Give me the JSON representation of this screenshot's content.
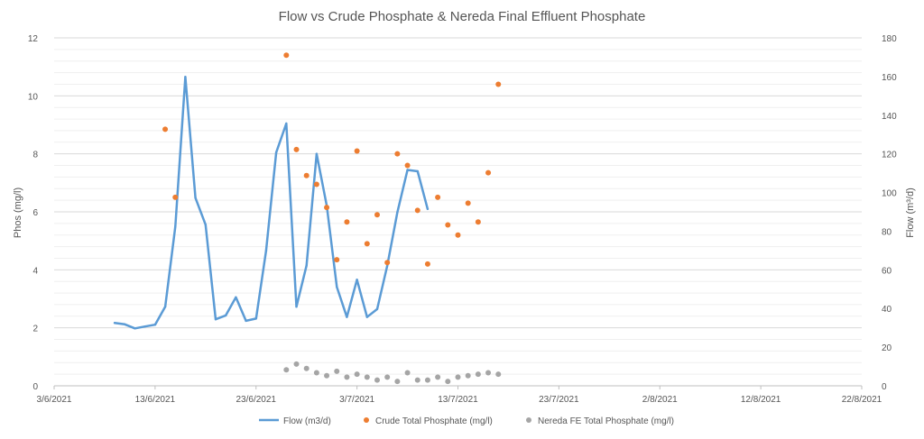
{
  "chart_data": {
    "type": "line+scatter",
    "title": "Flow vs Crude Phosphate & Nereda Final Effluent Phosphate",
    "ylabel_left": "Phos (mg/l)",
    "ylabel_right": "Flow (m³/d)",
    "xlabel": "",
    "x_ticks": [
      "3/6/2021",
      "13/6/2021",
      "23/6/2021",
      "3/7/2021",
      "13/7/2021",
      "23/7/2021",
      "2/8/2021",
      "12/8/2021",
      "22/8/2021"
    ],
    "xlim": [
      "2021-06-03",
      "2021-08-22"
    ],
    "ylim_left": [
      0,
      12
    ],
    "ylim_right": [
      0,
      180
    ],
    "y_ticks_left": [
      0,
      2,
      4,
      6,
      8,
      10,
      12
    ],
    "y_ticks_right": [
      0,
      20,
      40,
      60,
      80,
      100,
      120,
      140,
      160,
      180
    ],
    "grid": true,
    "legend_position": "bottom",
    "series": [
      {
        "name": "Flow (m3/d)",
        "kind": "line",
        "axis": "right",
        "color": "#5b9bd5",
        "points": [
          [
            "2021-06-09",
            32.5
          ],
          [
            "2021-06-10",
            31.8
          ],
          [
            "2021-06-11",
            29.7
          ],
          [
            "2021-06-12",
            30.7
          ],
          [
            "2021-06-13",
            31.6
          ],
          [
            "2021-06-14",
            40.9
          ],
          [
            "2021-06-15",
            82.4
          ],
          [
            "2021-06-16",
            159.8
          ],
          [
            "2021-06-17",
            97.2
          ],
          [
            "2021-06-18",
            83.4
          ],
          [
            "2021-06-19",
            34.4
          ],
          [
            "2021-06-20",
            36.4
          ],
          [
            "2021-06-21",
            45.8
          ],
          [
            "2021-06-22",
            33.6
          ],
          [
            "2021-06-23",
            34.8
          ],
          [
            "2021-06-24",
            69.9
          ],
          [
            "2021-06-25",
            120.7
          ],
          [
            "2021-06-26",
            135.7
          ],
          [
            "2021-06-27",
            40.9
          ],
          [
            "2021-06-28",
            62.2
          ],
          [
            "2021-06-29",
            120.0
          ],
          [
            "2021-06-30",
            93.2
          ],
          [
            "2021-07-01",
            51.1
          ],
          [
            "2021-07-02",
            35.6
          ],
          [
            "2021-07-03",
            54.9
          ],
          [
            "2021-07-04",
            35.6
          ],
          [
            "2021-07-05",
            39.7
          ],
          [
            "2021-07-06",
            62.2
          ],
          [
            "2021-07-07",
            89.8
          ],
          [
            "2021-07-08",
            111.7
          ],
          [
            "2021-07-09",
            111.0
          ],
          [
            "2021-07-10",
            91.5
          ]
        ]
      },
      {
        "name": "Crude Total Phosphate (mg/l)",
        "kind": "scatter",
        "axis": "left",
        "color": "#ed7d31",
        "points": [
          [
            "2021-06-14",
            8.85
          ],
          [
            "2021-06-15",
            6.5
          ],
          [
            "2021-06-26",
            11.4
          ],
          [
            "2021-06-27",
            8.15
          ],
          [
            "2021-06-28",
            7.25
          ],
          [
            "2021-06-29",
            6.95
          ],
          [
            "2021-06-30",
            6.15
          ],
          [
            "2021-07-01",
            4.35
          ],
          [
            "2021-07-02",
            5.65
          ],
          [
            "2021-07-03",
            8.1
          ],
          [
            "2021-07-04",
            4.9
          ],
          [
            "2021-07-05",
            5.9
          ],
          [
            "2021-07-06",
            4.25
          ],
          [
            "2021-07-07",
            8.0
          ],
          [
            "2021-07-08",
            7.6
          ],
          [
            "2021-07-09",
            6.05
          ],
          [
            "2021-07-10",
            4.2
          ],
          [
            "2021-07-11",
            6.5
          ],
          [
            "2021-07-12",
            5.55
          ],
          [
            "2021-07-13",
            5.2
          ],
          [
            "2021-07-14",
            6.3
          ],
          [
            "2021-07-15",
            5.65
          ],
          [
            "2021-07-16",
            7.35
          ],
          [
            "2021-07-17",
            10.4
          ]
        ]
      },
      {
        "name": "Nereda FE Total Phosphate (mg/l)",
        "kind": "scatter",
        "axis": "left",
        "color": "#a5a5a5",
        "points": [
          [
            "2021-06-26",
            0.55
          ],
          [
            "2021-06-27",
            0.75
          ],
          [
            "2021-06-28",
            0.6
          ],
          [
            "2021-06-29",
            0.45
          ],
          [
            "2021-06-30",
            0.35
          ],
          [
            "2021-07-01",
            0.5
          ],
          [
            "2021-07-02",
            0.3
          ],
          [
            "2021-07-03",
            0.4
          ],
          [
            "2021-07-04",
            0.3
          ],
          [
            "2021-07-05",
            0.2
          ],
          [
            "2021-07-06",
            0.3
          ],
          [
            "2021-07-07",
            0.15
          ],
          [
            "2021-07-08",
            0.45
          ],
          [
            "2021-07-09",
            0.2
          ],
          [
            "2021-07-10",
            0.2
          ],
          [
            "2021-07-11",
            0.3
          ],
          [
            "2021-07-12",
            0.15
          ],
          [
            "2021-07-13",
            0.3
          ],
          [
            "2021-07-14",
            0.35
          ],
          [
            "2021-07-15",
            0.4
          ],
          [
            "2021-07-16",
            0.45
          ],
          [
            "2021-07-17",
            0.4
          ]
        ]
      }
    ]
  }
}
